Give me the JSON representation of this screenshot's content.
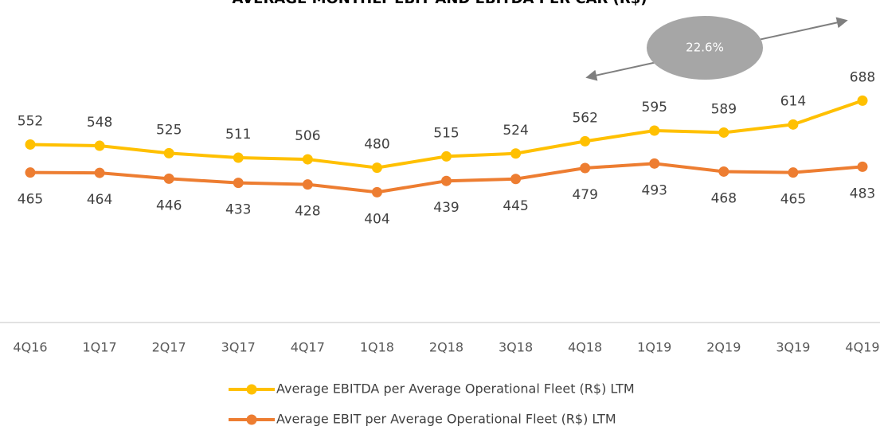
{
  "chart_data": {
    "type": "line",
    "title": "AVERAGE MONTHLY EBIT AND EBITDA PER CAR (R$)",
    "categories": [
      "4Q16",
      "1Q17",
      "2Q17",
      "3Q17",
      "4Q17",
      "1Q18",
      "2Q18",
      "3Q18",
      "4Q18",
      "1Q19",
      "2Q19",
      "3Q19",
      "4Q19"
    ],
    "series": [
      {
        "name": "Average EBITDA per Average Operational Fleet (R$) LTM",
        "color": "#FFC000",
        "values": [
          552,
          548,
          525,
          511,
          506,
          480,
          515,
          524,
          562,
          595,
          589,
          614,
          688
        ]
      },
      {
        "name": "Average EBIT per Average Operational Fleet (R$) LTM",
        "color": "#ED7D31",
        "values": [
          465,
          464,
          446,
          433,
          428,
          404,
          439,
          445,
          479,
          493,
          468,
          465,
          483
        ]
      }
    ],
    "annotation": "22.6%",
    "legend": "bottom"
  }
}
